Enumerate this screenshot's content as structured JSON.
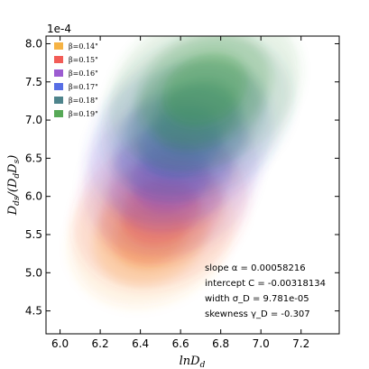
{
  "chart_data": {
    "type": "scatter",
    "title": "",
    "xlabel": "ln D_d",
    "ylabel": "D_ds/(D_d D_s)",
    "y_offset_label": "1e-4",
    "xlim": [
      5.93,
      7.39
    ],
    "ylim": [
      4.2,
      8.1
    ],
    "x_ticks": [
      6.0,
      6.2,
      6.4,
      6.6,
      6.8,
      7.0,
      7.2
    ],
    "x_tick_labels": [
      "6.0",
      "6.2",
      "6.4",
      "6.6",
      "6.8",
      "7.0",
      "7.2"
    ],
    "y_ticks": [
      4.5,
      5.0,
      5.5,
      6.0,
      6.5,
      7.0,
      7.5,
      8.0
    ],
    "y_tick_labels": [
      "4.5",
      "5.0",
      "5.5",
      "6.0",
      "6.5",
      "7.0",
      "7.5",
      "8.0"
    ],
    "legend_position": "top-left",
    "series": [
      {
        "name": "β=0.14\"",
        "color": "#f5a623",
        "center": [
          6.45,
          5.5
        ],
        "spread": [
          0.42,
          0.9
        ]
      },
      {
        "name": "β=0.15\"",
        "color": "#f0403a",
        "center": [
          6.5,
          5.8
        ],
        "spread": [
          0.45,
          0.95
        ]
      },
      {
        "name": "β=0.16\"",
        "color": "#8b3fc9",
        "center": [
          6.55,
          6.25
        ],
        "spread": [
          0.45,
          1.0
        ]
      },
      {
        "name": "β=0.17\"",
        "color": "#3a55e0",
        "center": [
          6.6,
          6.7
        ],
        "spread": [
          0.48,
          1.0
        ]
      },
      {
        "name": "β=0.18\"",
        "color": "#2f6e78",
        "center": [
          6.68,
          7.05
        ],
        "spread": [
          0.5,
          1.0
        ]
      },
      {
        "name": "β=0.19\"",
        "color": "#3a9a3a",
        "center": [
          6.72,
          7.4
        ],
        "spread": [
          0.5,
          1.0
        ]
      }
    ],
    "fit": {
      "slope": 0.00058216,
      "intercept": -0.00318134,
      "width": 9.781e-05,
      "skewness": -0.307
    },
    "bands_sigma": [
      1,
      2,
      3
    ],
    "annotations": [
      "slope α = 0.00058216",
      "intercept C = -0.00318134",
      "width σ_D = 9.781e-05",
      "skewness γ_D = -0.307"
    ]
  }
}
